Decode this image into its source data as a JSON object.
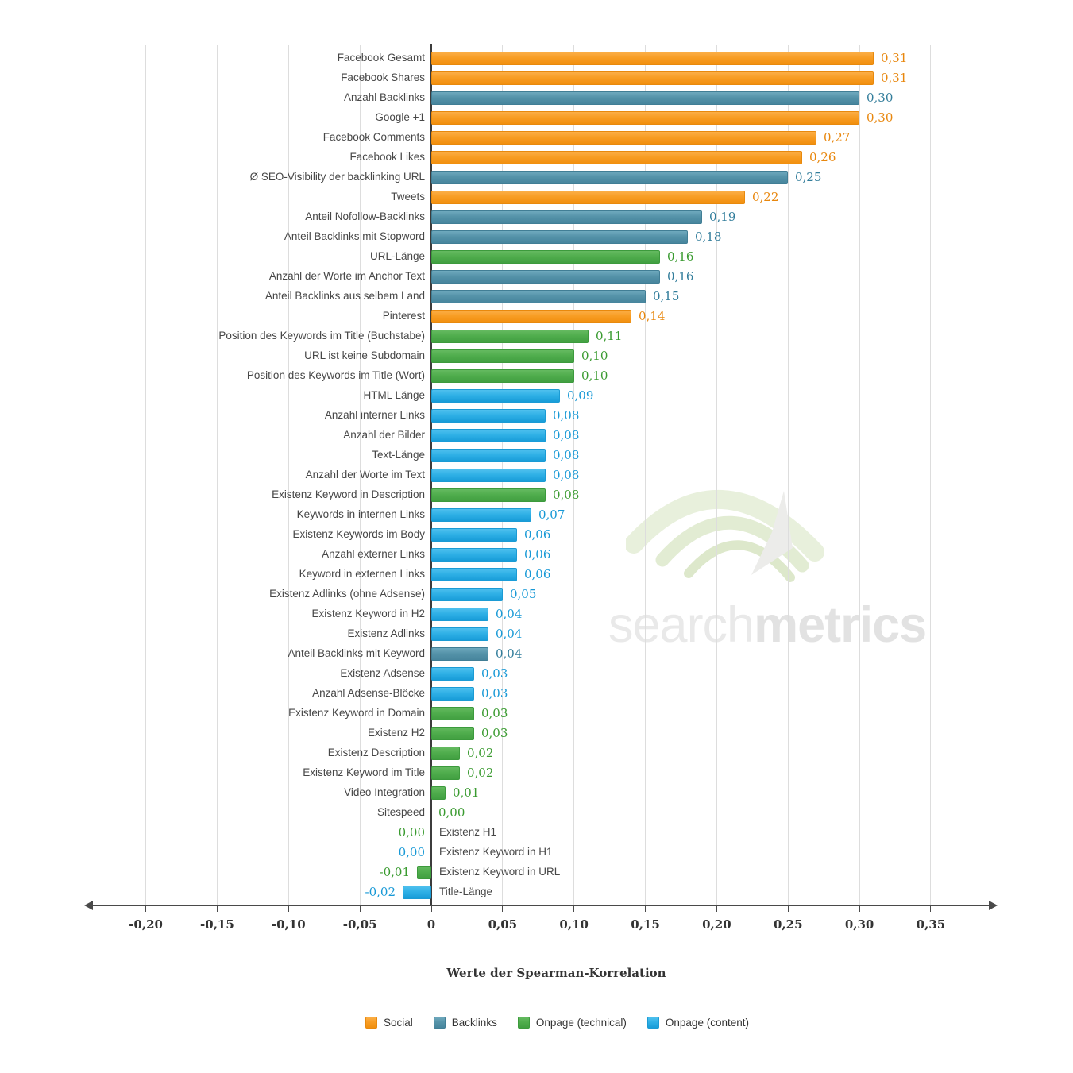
{
  "colors": {
    "social": {
      "top": "#FBAE47",
      "mid": "#F89D24",
      "bottom": "#F18F0E",
      "border": "#E8890D",
      "text": "#E8870E"
    },
    "backlinks": {
      "top": "#6FA9BD",
      "mid": "#5593A9",
      "bottom": "#47859D",
      "border": "#417E95",
      "text": "#327D9B"
    },
    "onpage_technical": {
      "top": "#64BA60",
      "mid": "#50AD4D",
      "bottom": "#419F41",
      "border": "#3C9A3C",
      "text": "#3A9B30"
    },
    "onpage_content": {
      "top": "#4FC0EE",
      "mid": "#2FB0E6",
      "bottom": "#189CD8",
      "border": "#1B9BD4",
      "text": "#1899D6"
    }
  },
  "watermark": {
    "light": "search",
    "bold": "metrics"
  },
  "chart_data": {
    "type": "bar",
    "orientation": "horizontal",
    "title": "",
    "xlabel": "Werte der Spearman-Korrelation",
    "xlim": [
      -0.225,
      0.39
    ],
    "grid": true,
    "legend_position": "bottom",
    "ticks": [
      {
        "v": -0.2,
        "label": "-0,20"
      },
      {
        "v": -0.15,
        "label": "-0,15"
      },
      {
        "v": -0.1,
        "label": "-0,10"
      },
      {
        "v": -0.05,
        "label": "-0,05"
      },
      {
        "v": 0,
        "label": "0"
      },
      {
        "v": 0.05,
        "label": "0,05"
      },
      {
        "v": 0.1,
        "label": "0,10"
      },
      {
        "v": 0.15,
        "label": "0,15"
      },
      {
        "v": 0.2,
        "label": "0,20"
      },
      {
        "v": 0.25,
        "label": "0,25"
      },
      {
        "v": 0.3,
        "label": "0,30"
      },
      {
        "v": 0.35,
        "label": "0,35"
      }
    ],
    "legend": [
      {
        "key": "social",
        "label": "Social"
      },
      {
        "key": "backlinks",
        "label": "Backlinks"
      },
      {
        "key": "onpage_technical",
        "label": "Onpage (technical)"
      },
      {
        "key": "onpage_content",
        "label": "Onpage (content)"
      }
    ],
    "rows": [
      {
        "label": "Facebook Gesamt",
        "value": 0.31,
        "value_label": "0,31",
        "group": "social"
      },
      {
        "label": "Facebook Shares",
        "value": 0.31,
        "value_label": "0,31",
        "group": "social"
      },
      {
        "label": "Anzahl Backlinks",
        "value": 0.3,
        "value_label": "0,30",
        "group": "backlinks"
      },
      {
        "label": "Google +1",
        "value": 0.3,
        "value_label": "0,30",
        "group": "social"
      },
      {
        "label": "Facebook Comments",
        "value": 0.27,
        "value_label": "0,27",
        "group": "social"
      },
      {
        "label": "Facebook Likes",
        "value": 0.26,
        "value_label": "0,26",
        "group": "social"
      },
      {
        "label": "Ø SEO-Visibility der backlinking URL",
        "value": 0.25,
        "value_label": "0,25",
        "group": "backlinks"
      },
      {
        "label": "Tweets",
        "value": 0.22,
        "value_label": "0,22",
        "group": "social"
      },
      {
        "label": "Anteil Nofollow-Backlinks",
        "value": 0.19,
        "value_label": "0,19",
        "group": "backlinks"
      },
      {
        "label": "Anteil Backlinks mit Stopword",
        "value": 0.18,
        "value_label": "0,18",
        "group": "backlinks"
      },
      {
        "label": "URL-Länge",
        "value": 0.16,
        "value_label": "0,16",
        "group": "onpage_technical"
      },
      {
        "label": "Anzahl der Worte im Anchor Text",
        "value": 0.16,
        "value_label": "0,16",
        "group": "backlinks"
      },
      {
        "label": "Anteil Backlinks aus selbem Land",
        "value": 0.15,
        "value_label": "0,15",
        "group": "backlinks"
      },
      {
        "label": "Pinterest",
        "value": 0.14,
        "value_label": "0,14",
        "group": "social"
      },
      {
        "label": "Position des Keywords im Title (Buchstabe)",
        "value": 0.11,
        "value_label": "0,11",
        "group": "onpage_technical"
      },
      {
        "label": "URL ist keine Subdomain",
        "value": 0.1,
        "value_label": "0,10",
        "group": "onpage_technical"
      },
      {
        "label": "Position des Keywords im Title (Wort)",
        "value": 0.1,
        "value_label": "0,10",
        "group": "onpage_technical"
      },
      {
        "label": "HTML Länge",
        "value": 0.09,
        "value_label": "0,09",
        "group": "onpage_content"
      },
      {
        "label": "Anzahl interner Links",
        "value": 0.08,
        "value_label": "0,08",
        "group": "onpage_content"
      },
      {
        "label": "Anzahl der Bilder",
        "value": 0.08,
        "value_label": "0,08",
        "group": "onpage_content"
      },
      {
        "label": "Text-Länge",
        "value": 0.08,
        "value_label": "0,08",
        "group": "onpage_content"
      },
      {
        "label": "Anzahl der Worte im Text",
        "value": 0.08,
        "value_label": "0,08",
        "group": "onpage_content"
      },
      {
        "label": "Existenz Keyword in Description",
        "value": 0.08,
        "value_label": "0,08",
        "group": "onpage_technical"
      },
      {
        "label": "Keywords in internen Links",
        "value": 0.07,
        "value_label": "0,07",
        "group": "onpage_content"
      },
      {
        "label": "Existenz Keywords im Body",
        "value": 0.06,
        "value_label": "0,06",
        "group": "onpage_content"
      },
      {
        "label": "Anzahl externer Links",
        "value": 0.06,
        "value_label": "0,06",
        "group": "onpage_content"
      },
      {
        "label": "Keyword in externen Links",
        "value": 0.06,
        "value_label": "0,06",
        "group": "onpage_content"
      },
      {
        "label": "Existenz Adlinks (ohne Adsense)",
        "value": 0.05,
        "value_label": "0,05",
        "group": "onpage_content"
      },
      {
        "label": "Existenz Keyword in H2",
        "value": 0.04,
        "value_label": "0,04",
        "group": "onpage_content"
      },
      {
        "label": "Existenz Adlinks",
        "value": 0.04,
        "value_label": "0,04",
        "group": "onpage_content"
      },
      {
        "label": "Anteil Backlinks mit Keyword",
        "value": 0.04,
        "value_label": "0,04",
        "group": "backlinks"
      },
      {
        "label": "Existenz Adsense",
        "value": 0.03,
        "value_label": "0,03",
        "group": "onpage_content"
      },
      {
        "label": "Anzahl Adsense-Blöcke",
        "value": 0.03,
        "value_label": "0,03",
        "group": "onpage_content"
      },
      {
        "label": "Existenz Keyword in Domain",
        "value": 0.03,
        "value_label": "0,03",
        "group": "onpage_technical"
      },
      {
        "label": "Existenz H2",
        "value": 0.03,
        "value_label": "0,03",
        "group": "onpage_technical"
      },
      {
        "label": "Existenz Description",
        "value": 0.02,
        "value_label": "0,02",
        "group": "onpage_technical"
      },
      {
        "label": "Existenz Keyword im Title",
        "value": 0.02,
        "value_label": "0,02",
        "group": "onpage_technical"
      },
      {
        "label": "Video Integration",
        "value": 0.01,
        "value_label": "0,01",
        "group": "onpage_technical"
      },
      {
        "label": "Sitespeed",
        "value": 0.0,
        "value_label": "0,00",
        "group": "onpage_technical",
        "label_side": "left"
      },
      {
        "label": "Existenz H1",
        "value": 0.0,
        "value_label": "0,00",
        "group": "onpage_technical",
        "label_side": "right"
      },
      {
        "label": "Existenz Keyword in H1",
        "value": 0.0,
        "value_label": "0,00",
        "group": "onpage_content",
        "label_side": "right"
      },
      {
        "label": "Existenz Keyword in URL",
        "value": -0.01,
        "value_label": "-0,01",
        "group": "onpage_technical",
        "label_side": "right"
      },
      {
        "label": "Title-Länge",
        "value": -0.02,
        "value_label": "-0,02",
        "group": "onpage_content",
        "label_side": "right"
      }
    ]
  }
}
